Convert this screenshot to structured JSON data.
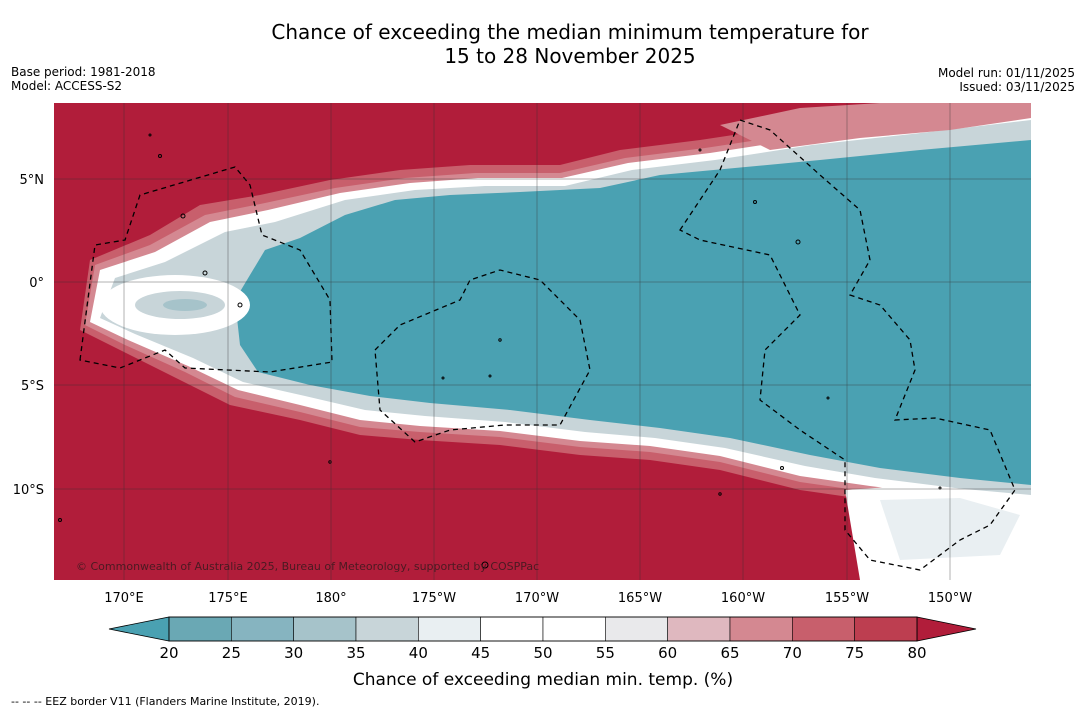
{
  "title": {
    "line1": "Chance of exceeding the median minimum temperature for",
    "line2": "15 to 28 November 2025"
  },
  "meta_left": {
    "base_period": "Base period: 1981-2018",
    "model": "Model: ACCESS-S2"
  },
  "meta_right": {
    "model_run": "Model run: 01/11/2025",
    "issued": "Issued: 03/11/2025"
  },
  "map": {
    "lat_labels": [
      "5°N",
      "0°",
      "5°S",
      "10°S"
    ],
    "lon_labels": [
      "170°E",
      "175°E",
      "180°",
      "175°W",
      "170°W",
      "165°W",
      "160°W",
      "155°W",
      "150°W"
    ],
    "copyright": "© Commonwealth of Australia 2025, Bureau of Meteorology, supported by COSPPac"
  },
  "colorbar": {
    "ticks": [
      "20",
      "25",
      "30",
      "35",
      "40",
      "45",
      "50",
      "55",
      "60",
      "65",
      "70",
      "75",
      "80"
    ],
    "colors": [
      "#6aa8b4",
      "#86b4c0",
      "#a6c3ca",
      "#c8d5d9",
      "#e9eff2",
      "#ffffff",
      "#ffffff",
      "#e9e9eb",
      "#dfb8bf",
      "#d48891",
      "#c85f6c",
      "#bd3e50"
    ],
    "under_color": "#4aa1b2",
    "over_color": "#b11d3a",
    "label": "Chance of exceeding median min. temp. (%)"
  },
  "footer": "-- -- -- EEZ border V11 (Flanders Marine Institute, 2019)."
}
